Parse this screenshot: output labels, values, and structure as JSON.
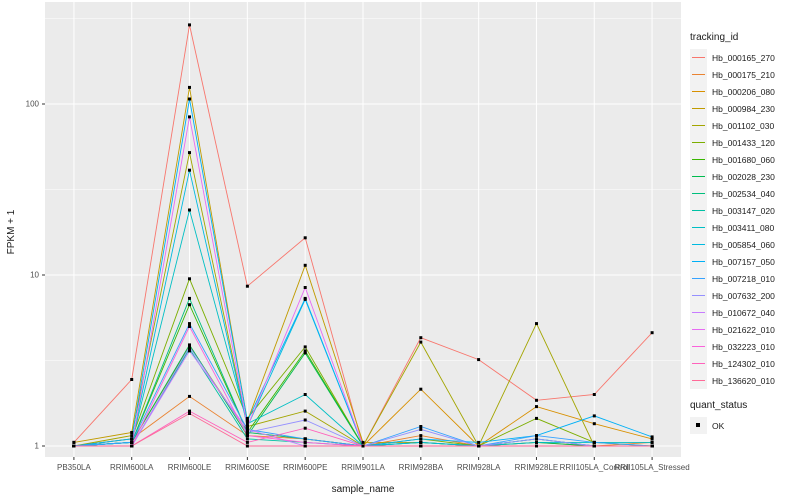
{
  "colors": {
    "page_bg": "#FFFFFF",
    "panel_bg": "#EBEBEB",
    "grid": "#FFFFFF",
    "legend_key_bg": "#F2F2F2",
    "tick_text": "#4D4D4D",
    "tick_mark": "#333333",
    "title_text": "#1A1A1A",
    "point": "#000000"
  },
  "chart_data": {
    "type": "line",
    "title": "",
    "xlabel": "sample_name",
    "ylabel": "FPKM + 1",
    "y_scale": "log10",
    "y_ticks": [
      1,
      10,
      100
    ],
    "ylim": [
      1,
      320
    ],
    "grid": "white major+minor gridlines on grey panel",
    "legend_position": "right",
    "legend_title": "tracking_id",
    "point_marker": "small black square (quant_status = OK)",
    "x_categories": [
      "PB350LA",
      "RRIM600LA",
      "RRIM600LE",
      "RRIM600SE",
      "RRIM600PE",
      "RRIM901LA",
      "RRIM928BA",
      "RRIM928LA",
      "RRIM928LE",
      "RRII105LA_Control",
      "RRII105LA_Stressed"
    ],
    "series": [
      {
        "name": "Hb_000165_270",
        "color": "#F8766D",
        "values": [
          1.05,
          2.45,
          290,
          8.6,
          16.5,
          1.0,
          4.3,
          3.2,
          1.85,
          2.0,
          4.6
        ]
      },
      {
        "name": "Hb_000175_210",
        "color": "#EA8331",
        "values": [
          1.0,
          1.1,
          1.95,
          1.15,
          1.1,
          1.0,
          1.15,
          1.0,
          1.05,
          1.0,
          1.05
        ]
      },
      {
        "name": "Hb_000206_080",
        "color": "#D89000",
        "values": [
          1.0,
          1.05,
          3.85,
          1.2,
          1.1,
          1.0,
          2.15,
          1.0,
          1.7,
          1.35,
          1.1
        ]
      },
      {
        "name": "Hb_000984_230",
        "color": "#C09B00",
        "values": [
          1.05,
          1.2,
          125,
          1.4,
          11.4,
          1.05,
          1.05,
          1.0,
          1.0,
          1.0,
          1.0
        ]
      },
      {
        "name": "Hb_001102_030",
        "color": "#A3A500",
        "values": [
          1.0,
          1.15,
          52,
          1.3,
          1.6,
          1.0,
          4.05,
          1.0,
          5.2,
          1.0,
          1.0
        ]
      },
      {
        "name": "Hb_001433_120",
        "color": "#7CAE00",
        "values": [
          1.0,
          1.1,
          9.5,
          1.45,
          3.8,
          1.0,
          1.1,
          1.0,
          1.45,
          1.05,
          1.0
        ]
      },
      {
        "name": "Hb_001680_060",
        "color": "#39B600",
        "values": [
          1.0,
          1.05,
          6.7,
          1.2,
          3.6,
          1.0,
          1.05,
          1.0,
          1.1,
          1.0,
          1.0
        ]
      },
      {
        "name": "Hb_002028_230",
        "color": "#00BB4E",
        "values": [
          1.0,
          1.05,
          3.9,
          1.15,
          3.5,
          1.0,
          1.0,
          1.0,
          1.05,
          1.0,
          1.0
        ]
      },
      {
        "name": "Hb_002534_040",
        "color": "#00BF7D",
        "values": [
          1.0,
          1.05,
          7.3,
          1.2,
          1.1,
          1.0,
          1.05,
          1.0,
          1.0,
          1.0,
          1.0
        ]
      },
      {
        "name": "Hb_003147_020",
        "color": "#00C1A3",
        "values": [
          1.0,
          1.0,
          3.7,
          1.1,
          1.05,
          1.0,
          1.0,
          1.0,
          1.0,
          1.0,
          1.0
        ]
      },
      {
        "name": "Hb_003411_080",
        "color": "#00BFC4",
        "values": [
          1.0,
          1.05,
          24,
          1.35,
          2.0,
          1.0,
          1.0,
          1.0,
          1.05,
          1.05,
          1.05
        ]
      },
      {
        "name": "Hb_005854_060",
        "color": "#00BAE0",
        "values": [
          1.0,
          1.05,
          41,
          1.3,
          7.2,
          1.0,
          1.05,
          1.0,
          1.1,
          1.0,
          1.0
        ]
      },
      {
        "name": "Hb_007157_050",
        "color": "#00B0F6",
        "values": [
          1.0,
          1.1,
          107,
          1.4,
          7.3,
          1.0,
          1.1,
          1.05,
          1.15,
          1.5,
          1.13
        ]
      },
      {
        "name": "Hb_007218_010",
        "color": "#35A2FF",
        "values": [
          1.0,
          1.05,
          5.2,
          1.25,
          1.1,
          1.0,
          1.3,
          1.0,
          1.15,
          1.05,
          1.0
        ]
      },
      {
        "name": "Hb_007632_200",
        "color": "#9590FF",
        "values": [
          1.0,
          1.0,
          3.8,
          1.2,
          1.42,
          1.0,
          1.25,
          1.0,
          1.1,
          1.0,
          1.0
        ]
      },
      {
        "name": "Hb_010672_040",
        "color": "#C77CFF",
        "values": [
          1.0,
          1.0,
          3.6,
          1.25,
          1.0,
          1.0,
          1.0,
          1.0,
          1.0,
          1.0,
          1.0
        ]
      },
      {
        "name": "Hb_021622_010",
        "color": "#E76BF3",
        "values": [
          1.0,
          1.0,
          84,
          1.3,
          8.45,
          1.0,
          1.0,
          1.0,
          1.0,
          1.0,
          1.0
        ]
      },
      {
        "name": "Hb_032223_010",
        "color": "#FA62DB",
        "values": [
          1.0,
          1.0,
          5.0,
          1.15,
          1.05,
          1.0,
          1.0,
          1.0,
          1.0,
          1.0,
          1.0
        ]
      },
      {
        "name": "Hb_124302_010",
        "color": "#FF62BC",
        "values": [
          1.0,
          1.0,
          1.6,
          1.05,
          1.27,
          1.0,
          1.0,
          1.0,
          1.0,
          1.0,
          1.0
        ]
      },
      {
        "name": "Hb_136620_010",
        "color": "#FF6A98",
        "values": [
          1.0,
          1.0,
          1.55,
          1.0,
          1.0,
          1.0,
          1.0,
          1.0,
          1.0,
          1.0,
          1.0
        ]
      }
    ],
    "quant_legend": {
      "title": "quant_status",
      "items": [
        {
          "label": "OK",
          "marker": "black-square"
        }
      ]
    }
  }
}
